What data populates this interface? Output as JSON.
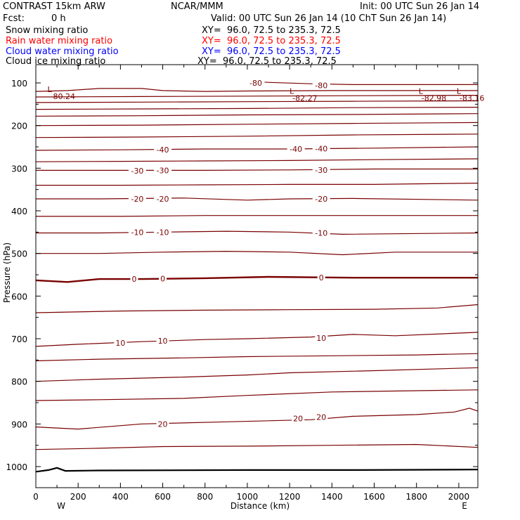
{
  "header": {
    "model": "CONTRAST 15km ARW",
    "org": "NCAR/MMM",
    "init": "Init: 00 UTC Sun 26 Jan 14",
    "fcst_label": "Fcst:",
    "fcst_value": "0 h",
    "valid": "Valid: 00 UTC Sun 26 Jan 14 (10 ChT Sun 26 Jan 14)"
  },
  "fields": [
    {
      "name": "Snow mixing ratio",
      "xy": "XY=  96.0, 72.5 to 235.3, 72.5",
      "color": "#000000"
    },
    {
      "name": "Rain water mixing ratio",
      "xy": "XY=  96.0, 72.5 to 235.3, 72.5",
      "color": "#ff0000"
    },
    {
      "name": "Cloud water mixing ratio",
      "xy": "XY=  96.0, 72.5 to 235.3, 72.5",
      "color": "#0000ff"
    },
    {
      "name": "Cloud ice mixing ratio",
      "xy": "XY=  96.0, 72.5 to 235.3, 72.5",
      "color": "#000000"
    }
  ],
  "colors": {
    "isotherm": "#7a0000",
    "ground": "#000000",
    "frame": "#000000"
  },
  "chart_data": {
    "type": "contour",
    "xlabel": "Distance (km)",
    "ylabel": "Pressure (hPa)",
    "xlim": [
      0,
      2090
    ],
    "ylim": [
      1050,
      75
    ],
    "xticks": [
      0,
      200,
      400,
      600,
      800,
      1000,
      1200,
      1400,
      1600,
      1800,
      2000
    ],
    "yticks": [
      100,
      200,
      300,
      400,
      500,
      600,
      700,
      800,
      900,
      1000
    ],
    "x_endpoints": [
      "W",
      "E"
    ],
    "isotherm_interval_c": 5,
    "isotherms": [
      {
        "t": 25,
        "pts": [
          [
            0,
            960
          ],
          [
            300,
            957
          ],
          [
            600,
            953
          ],
          [
            1000,
            952
          ],
          [
            1400,
            950
          ],
          [
            1800,
            948
          ],
          [
            2090,
            955
          ]
        ]
      },
      {
        "t": 20,
        "pts": [
          [
            0,
            907
          ],
          [
            200,
            912
          ],
          [
            500,
            900
          ],
          [
            900,
            895
          ],
          [
            1300,
            890
          ],
          [
            1500,
            882
          ],
          [
            1800,
            878
          ],
          [
            1980,
            872
          ],
          [
            2050,
            863
          ],
          [
            2090,
            870
          ]
        ]
      },
      {
        "t": 15,
        "pts": [
          [
            0,
            845
          ],
          [
            300,
            843
          ],
          [
            700,
            840
          ],
          [
            1000,
            833
          ],
          [
            1400,
            825
          ],
          [
            1800,
            822
          ],
          [
            2090,
            820
          ]
        ]
      },
      {
        "t": 10,
        "pts": [
          [
            0,
            800
          ],
          [
            300,
            795
          ],
          [
            700,
            790
          ],
          [
            1000,
            785
          ],
          [
            1200,
            780
          ],
          [
            1600,
            775
          ],
          [
            2090,
            768
          ]
        ]
      },
      {
        "t": 5,
        "pts": [
          [
            0,
            752
          ],
          [
            300,
            748
          ],
          [
            700,
            745
          ],
          [
            1000,
            742
          ],
          [
            1400,
            740
          ],
          [
            1800,
            738
          ],
          [
            2090,
            735
          ]
        ]
      },
      {
        "t": 10,
        "pts": [
          [
            0,
            718
          ],
          [
            200,
            713
          ],
          [
            500,
            707
          ],
          [
            800,
            702
          ],
          [
            1000,
            700
          ],
          [
            1300,
            696
          ],
          [
            1500,
            690
          ],
          [
            1700,
            693
          ],
          [
            2090,
            685
          ]
        ]
      },
      {
        "t": -5,
        "pts": [
          [
            0,
            639
          ],
          [
            400,
            635
          ],
          [
            800,
            633
          ],
          [
            1200,
            632
          ],
          [
            1600,
            631
          ],
          [
            1900,
            628
          ],
          [
            2090,
            620
          ]
        ]
      },
      {
        "t": 0,
        "pts": [
          [
            0,
            563
          ],
          [
            150,
            567
          ],
          [
            300,
            560
          ],
          [
            500,
            560
          ],
          [
            800,
            558
          ],
          [
            1100,
            555
          ],
          [
            1500,
            557
          ],
          [
            2090,
            557
          ]
        ]
      },
      {
        "t": -5,
        "pts": [
          [
            0,
            500
          ],
          [
            300,
            500
          ],
          [
            600,
            497
          ],
          [
            900,
            495
          ],
          [
            1200,
            497
          ],
          [
            1450,
            503
          ],
          [
            1700,
            497
          ],
          [
            2090,
            497
          ]
        ]
      },
      {
        "t": -10,
        "pts": [
          [
            0,
            452
          ],
          [
            300,
            452
          ],
          [
            600,
            450
          ],
          [
            900,
            448
          ],
          [
            1200,
            450
          ],
          [
            1450,
            455
          ],
          [
            2090,
            452
          ]
        ]
      },
      {
        "t": -15,
        "pts": [
          [
            0,
            413
          ],
          [
            400,
            413
          ],
          [
            800,
            411
          ],
          [
            1200,
            411
          ],
          [
            1600,
            411
          ],
          [
            2090,
            411
          ]
        ]
      },
      {
        "t": -20,
        "pts": [
          [
            0,
            372
          ],
          [
            300,
            372
          ],
          [
            700,
            370
          ],
          [
            1000,
            375
          ],
          [
            1200,
            372
          ],
          [
            1500,
            371
          ],
          [
            2090,
            375
          ]
        ]
      },
      {
        "t": -25,
        "pts": [
          [
            0,
            340
          ],
          [
            400,
            340
          ],
          [
            800,
            339
          ],
          [
            1200,
            338
          ],
          [
            1600,
            338
          ],
          [
            2090,
            335
          ]
        ]
      },
      {
        "t": -30,
        "pts": [
          [
            0,
            305
          ],
          [
            400,
            305
          ],
          [
            800,
            305
          ],
          [
            1200,
            304
          ],
          [
            1600,
            302
          ],
          [
            2090,
            302
          ]
        ]
      },
      {
        "t": -35,
        "pts": [
          [
            0,
            285
          ],
          [
            400,
            284
          ],
          [
            800,
            283
          ],
          [
            1200,
            282
          ],
          [
            1600,
            280
          ],
          [
            2090,
            278
          ]
        ]
      },
      {
        "t": -40,
        "pts": [
          [
            0,
            258
          ],
          [
            400,
            257
          ],
          [
            800,
            255
          ],
          [
            1200,
            255
          ],
          [
            1600,
            253
          ],
          [
            2090,
            250
          ]
        ]
      },
      {
        "t": -45,
        "pts": [
          [
            0,
            228
          ],
          [
            500,
            227
          ],
          [
            1000,
            225
          ],
          [
            1500,
            222
          ],
          [
            2090,
            220
          ]
        ]
      },
      {
        "t": -50,
        "pts": [
          [
            0,
            200
          ],
          [
            500,
            199
          ],
          [
            1000,
            197
          ],
          [
            1500,
            195
          ],
          [
            2090,
            193
          ]
        ]
      },
      {
        "t": -55,
        "pts": [
          [
            0,
            178
          ],
          [
            500,
            177
          ],
          [
            1000,
            175
          ],
          [
            1500,
            174
          ],
          [
            2090,
            172
          ]
        ]
      },
      {
        "t": -60,
        "pts": [
          [
            0,
            162
          ],
          [
            500,
            161
          ],
          [
            1000,
            160
          ],
          [
            1500,
            158
          ],
          [
            2090,
            157
          ]
        ]
      },
      {
        "t": -65,
        "pts": [
          [
            0,
            146
          ],
          [
            500,
            145
          ],
          [
            1000,
            144
          ],
          [
            1500,
            143
          ],
          [
            2090,
            142
          ]
        ]
      },
      {
        "t": -70,
        "pts": [
          [
            0,
            133
          ],
          [
            500,
            132
          ],
          [
            1000,
            131
          ],
          [
            1500,
            130
          ],
          [
            2090,
            129
          ]
        ]
      },
      {
        "t": -75,
        "pts": [
          [
            0,
            120
          ],
          [
            150,
            118
          ],
          [
            300,
            113
          ],
          [
            500,
            113
          ],
          [
            600,
            118
          ],
          [
            800,
            120
          ],
          [
            1000,
            119
          ],
          [
            1400,
            118
          ],
          [
            2090,
            118
          ]
        ]
      },
      {
        "t": -80,
        "pts": [
          [
            1000,
            97
          ],
          [
            1300,
            102
          ],
          [
            1500,
            104
          ],
          [
            2090,
            104
          ]
        ]
      }
    ],
    "ground_pressure_hpa": [
      [
        0,
        1012
      ],
      [
        60,
        1008
      ],
      [
        100,
        1003
      ],
      [
        140,
        1010
      ],
      [
        300,
        1009
      ],
      [
        1000,
        1008
      ],
      [
        1500,
        1008
      ],
      [
        2090,
        1007
      ]
    ],
    "contour_labels": [
      {
        "text": "-40",
        "x": 600,
        "p": 257
      },
      {
        "text": "-40",
        "x": 1230,
        "p": 255
      },
      {
        "text": "-40",
        "x": 1350,
        "p": 254
      },
      {
        "text": "-30",
        "x": 480,
        "p": 306
      },
      {
        "text": "-30",
        "x": 600,
        "p": 305
      },
      {
        "text": "-30",
        "x": 1350,
        "p": 304
      },
      {
        "text": "-20",
        "x": 480,
        "p": 372
      },
      {
        "text": "-20",
        "x": 600,
        "p": 372
      },
      {
        "text": "-20",
        "x": 1350,
        "p": 372
      },
      {
        "text": "-10",
        "x": 480,
        "p": 450
      },
      {
        "text": "-10",
        "x": 600,
        "p": 450
      },
      {
        "text": "-10",
        "x": 1350,
        "p": 452
      },
      {
        "text": "0",
        "x": 465,
        "p": 560
      },
      {
        "text": "0",
        "x": 600,
        "p": 559
      },
      {
        "text": "0",
        "x": 1350,
        "p": 557
      },
      {
        "text": "10",
        "x": 400,
        "p": 710
      },
      {
        "text": "10",
        "x": 600,
        "p": 705
      },
      {
        "text": "10",
        "x": 1350,
        "p": 698
      },
      {
        "text": "20",
        "x": 600,
        "p": 900
      },
      {
        "text": "20",
        "x": 1240,
        "p": 887
      },
      {
        "text": "20",
        "x": 1350,
        "p": 884
      },
      {
        "text": "-80",
        "x": 1040,
        "p": 100
      },
      {
        "text": "-80",
        "x": 1350,
        "p": 106
      }
    ],
    "lows": [
      {
        "label": "L",
        "value": "-80.24",
        "x": 55,
        "p": 92
      },
      {
        "label": "L",
        "value": "-82.27",
        "x": 1200,
        "p": 96
      },
      {
        "label": "L",
        "value": "-82.98",
        "x": 1810,
        "p": 96
      },
      {
        "label": "L",
        "value": "-83.16",
        "x": 1990,
        "p": 96
      }
    ]
  }
}
